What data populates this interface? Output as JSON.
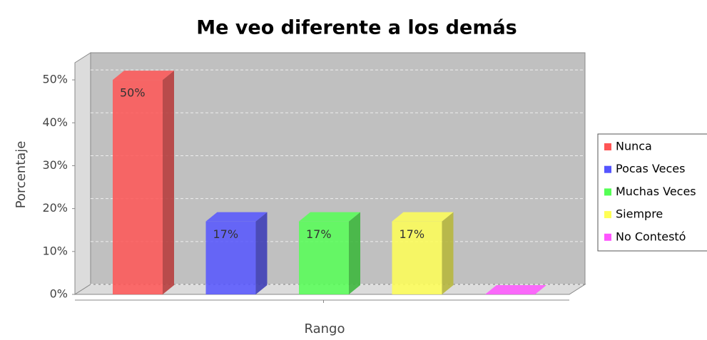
{
  "chart_data": {
    "type": "bar3d",
    "title": "Me veo diferente a los demás",
    "x_label": "Rango",
    "y_label": "Porcentaje",
    "series": [
      {
        "name": "Nunca",
        "color": "#ff5555",
        "values": [
          50
        ],
        "value_labels": [
          "50%"
        ]
      },
      {
        "name": "Pocas Veces",
        "color": "#5555ff",
        "values": [
          17
        ],
        "value_labels": [
          "17%"
        ]
      },
      {
        "name": "Muchas Veces",
        "color": "#55ff55",
        "values": [
          17
        ],
        "value_labels": [
          "17%"
        ]
      },
      {
        "name": "Siempre",
        "color": "#ffff55",
        "values": [
          17
        ],
        "value_labels": [
          "17%"
        ]
      },
      {
        "name": "No Contestó",
        "color": "#ff55ff",
        "values": [
          0
        ]
      }
    ],
    "ylim": [
      0,
      54
    ],
    "yticks": [
      {
        "value": 0,
        "label": "0%"
      },
      {
        "value": 10,
        "label": "10%"
      },
      {
        "value": 20,
        "label": "20%"
      },
      {
        "value": 30,
        "label": "30%"
      },
      {
        "value": 40,
        "label": "40%"
      },
      {
        "value": 50,
        "label": "50%"
      }
    ],
    "grid": true,
    "legend": "right"
  }
}
